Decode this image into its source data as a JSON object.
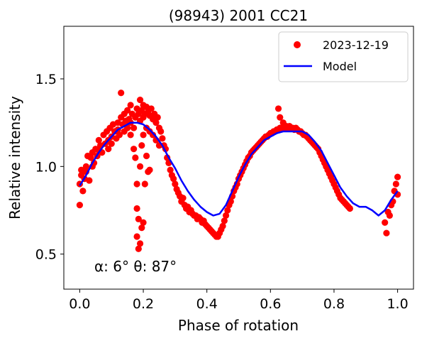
{
  "chart_data": {
    "type": "scatter",
    "title": "(98943) 2001 CC21",
    "xlabel": "Phase of rotation",
    "ylabel": "Relative intensity",
    "xlim": [
      -0.05,
      1.05
    ],
    "ylim": [
      0.3,
      1.8
    ],
    "xticks": [
      0.0,
      0.2,
      0.4,
      0.6,
      0.8,
      1.0
    ],
    "xtick_labels": [
      "0.0",
      "0.2",
      "0.4",
      "0.6",
      "0.8",
      "1.0"
    ],
    "yticks": [
      0.5,
      1.0,
      1.5
    ],
    "ytick_labels": [
      "0.5",
      "1.0",
      "1.5"
    ],
    "grid": false,
    "legend": "top-right",
    "annotation": "α: 6° θ: 87°",
    "series": [
      {
        "name": "2023-12-19",
        "kind": "scatter",
        "color": "#ff0000",
        "points": [
          [
            0.0,
            0.78
          ],
          [
            0.0,
            0.9
          ],
          [
            0.005,
            0.95
          ],
          [
            0.005,
            0.98
          ],
          [
            0.01,
            0.86
          ],
          [
            0.015,
            0.93
          ],
          [
            0.02,
            0.97
          ],
          [
            0.02,
            1.0
          ],
          [
            0.025,
            1.06
          ],
          [
            0.03,
            0.92
          ],
          [
            0.035,
            1.05
          ],
          [
            0.04,
            1.0
          ],
          [
            0.04,
            1.08
          ],
          [
            0.045,
            1.02
          ],
          [
            0.05,
            1.1
          ],
          [
            0.055,
            1.06
          ],
          [
            0.06,
            1.15
          ],
          [
            0.06,
            1.09
          ],
          [
            0.065,
            1.12
          ],
          [
            0.07,
            1.08
          ],
          [
            0.075,
            1.18
          ],
          [
            0.08,
            1.13
          ],
          [
            0.085,
            1.2
          ],
          [
            0.09,
            1.15
          ],
          [
            0.09,
            1.1
          ],
          [
            0.095,
            1.22
          ],
          [
            0.1,
            1.17
          ],
          [
            0.1,
            1.13
          ],
          [
            0.105,
            1.24
          ],
          [
            0.11,
            1.2
          ],
          [
            0.115,
            1.16
          ],
          [
            0.12,
            1.25
          ],
          [
            0.12,
            1.21
          ],
          [
            0.125,
            1.18
          ],
          [
            0.13,
            1.28
          ],
          [
            0.13,
            1.42
          ],
          [
            0.135,
            1.24
          ],
          [
            0.14,
            1.3
          ],
          [
            0.14,
            1.2
          ],
          [
            0.145,
            1.26
          ],
          [
            0.15,
            1.32
          ],
          [
            0.15,
            1.22
          ],
          [
            0.155,
            1.27
          ],
          [
            0.16,
            1.35
          ],
          [
            0.16,
            1.25
          ],
          [
            0.16,
            1.18
          ],
          [
            0.165,
            1.3
          ],
          [
            0.17,
            1.22
          ],
          [
            0.17,
            1.1
          ],
          [
            0.175,
            1.28
          ],
          [
            0.175,
            1.05
          ],
          [
            0.18,
            1.33
          ],
          [
            0.18,
            0.9
          ],
          [
            0.18,
            0.76
          ],
          [
            0.18,
            0.6
          ],
          [
            0.185,
            1.3
          ],
          [
            0.185,
            0.7
          ],
          [
            0.185,
            0.53
          ],
          [
            0.19,
            1.38
          ],
          [
            0.19,
            1.26
          ],
          [
            0.19,
            1.0
          ],
          [
            0.19,
            0.56
          ],
          [
            0.195,
            1.32
          ],
          [
            0.195,
            1.12
          ],
          [
            0.195,
            0.65
          ],
          [
            0.2,
            1.35
          ],
          [
            0.2,
            1.28
          ],
          [
            0.2,
            1.18
          ],
          [
            0.2,
            0.68
          ],
          [
            0.205,
            1.3
          ],
          [
            0.205,
            0.9
          ],
          [
            0.21,
            1.34
          ],
          [
            0.21,
            1.22
          ],
          [
            0.21,
            1.06
          ],
          [
            0.215,
            1.31
          ],
          [
            0.215,
            0.97
          ],
          [
            0.22,
            1.29
          ],
          [
            0.22,
            1.2
          ],
          [
            0.22,
            0.98
          ],
          [
            0.225,
            1.33
          ],
          [
            0.23,
            1.27
          ],
          [
            0.23,
            1.18
          ],
          [
            0.235,
            1.3
          ],
          [
            0.24,
            1.25
          ],
          [
            0.24,
            1.15
          ],
          [
            0.245,
            1.28
          ],
          [
            0.25,
            1.22
          ],
          [
            0.25,
            1.12
          ],
          [
            0.255,
            1.2
          ],
          [
            0.26,
            1.16
          ],
          [
            0.265,
            1.12
          ],
          [
            0.27,
            1.1
          ],
          [
            0.275,
            1.05
          ],
          [
            0.28,
            1.02
          ],
          [
            0.285,
            0.98
          ],
          [
            0.29,
            0.95
          ],
          [
            0.295,
            0.93
          ],
          [
            0.3,
            0.9
          ],
          [
            0.305,
            0.87
          ],
          [
            0.31,
            0.85
          ],
          [
            0.315,
            0.83
          ],
          [
            0.32,
            0.8
          ],
          [
            0.325,
            0.82
          ],
          [
            0.33,
            0.78
          ],
          [
            0.335,
            0.76
          ],
          [
            0.34,
            0.77
          ],
          [
            0.345,
            0.74
          ],
          [
            0.35,
            0.75
          ],
          [
            0.355,
            0.73
          ],
          [
            0.36,
            0.72
          ],
          [
            0.365,
            0.72
          ],
          [
            0.37,
            0.7
          ],
          [
            0.375,
            0.71
          ],
          [
            0.38,
            0.7
          ],
          [
            0.385,
            0.68
          ],
          [
            0.39,
            0.69
          ],
          [
            0.395,
            0.67
          ],
          [
            0.4,
            0.66
          ],
          [
            0.405,
            0.65
          ],
          [
            0.41,
            0.64
          ],
          [
            0.415,
            0.63
          ],
          [
            0.42,
            0.62
          ],
          [
            0.425,
            0.61
          ],
          [
            0.43,
            0.6
          ],
          [
            0.435,
            0.6
          ],
          [
            0.44,
            0.62
          ],
          [
            0.445,
            0.64
          ],
          [
            0.45,
            0.66
          ],
          [
            0.455,
            0.69
          ],
          [
            0.46,
            0.72
          ],
          [
            0.465,
            0.75
          ],
          [
            0.47,
            0.78
          ],
          [
            0.475,
            0.8
          ],
          [
            0.48,
            0.83
          ],
          [
            0.485,
            0.86
          ],
          [
            0.49,
            0.88
          ],
          [
            0.495,
            0.9
          ],
          [
            0.5,
            0.93
          ],
          [
            0.505,
            0.95
          ],
          [
            0.51,
            0.97
          ],
          [
            0.515,
            0.99
          ],
          [
            0.52,
            1.01
          ],
          [
            0.525,
            1.03
          ],
          [
            0.53,
            1.05
          ],
          [
            0.535,
            1.06
          ],
          [
            0.54,
            1.08
          ],
          [
            0.545,
            1.09
          ],
          [
            0.55,
            1.1
          ],
          [
            0.555,
            1.11
          ],
          [
            0.56,
            1.12
          ],
          [
            0.565,
            1.13
          ],
          [
            0.57,
            1.14
          ],
          [
            0.575,
            1.15
          ],
          [
            0.58,
            1.16
          ],
          [
            0.585,
            1.17
          ],
          [
            0.59,
            1.17
          ],
          [
            0.595,
            1.18
          ],
          [
            0.6,
            1.19
          ],
          [
            0.605,
            1.19
          ],
          [
            0.61,
            1.2
          ],
          [
            0.615,
            1.2
          ],
          [
            0.62,
            1.21
          ],
          [
            0.625,
            1.33
          ],
          [
            0.625,
            1.21
          ],
          [
            0.63,
            1.28
          ],
          [
            0.63,
            1.22
          ],
          [
            0.635,
            1.22
          ],
          [
            0.64,
            1.25
          ],
          [
            0.645,
            1.22
          ],
          [
            0.65,
            1.23
          ],
          [
            0.655,
            1.22
          ],
          [
            0.66,
            1.23
          ],
          [
            0.665,
            1.22
          ],
          [
            0.67,
            1.22
          ],
          [
            0.675,
            1.21
          ],
          [
            0.68,
            1.22
          ],
          [
            0.685,
            1.21
          ],
          [
            0.69,
            1.2
          ],
          [
            0.695,
            1.2
          ],
          [
            0.7,
            1.19
          ],
          [
            0.705,
            1.18
          ],
          [
            0.71,
            1.18
          ],
          [
            0.715,
            1.17
          ],
          [
            0.72,
            1.16
          ],
          [
            0.725,
            1.15
          ],
          [
            0.73,
            1.14
          ],
          [
            0.735,
            1.13
          ],
          [
            0.74,
            1.12
          ],
          [
            0.745,
            1.11
          ],
          [
            0.75,
            1.1
          ],
          [
            0.755,
            1.08
          ],
          [
            0.76,
            1.06
          ],
          [
            0.765,
            1.04
          ],
          [
            0.77,
            1.02
          ],
          [
            0.775,
            1.0
          ],
          [
            0.78,
            0.98
          ],
          [
            0.785,
            0.96
          ],
          [
            0.79,
            0.94
          ],
          [
            0.795,
            0.92
          ],
          [
            0.8,
            0.9
          ],
          [
            0.805,
            0.88
          ],
          [
            0.81,
            0.86
          ],
          [
            0.815,
            0.84
          ],
          [
            0.82,
            0.82
          ],
          [
            0.825,
            0.81
          ],
          [
            0.83,
            0.8
          ],
          [
            0.835,
            0.79
          ],
          [
            0.84,
            0.78
          ],
          [
            0.845,
            0.77
          ],
          [
            0.85,
            0.76
          ],
          [
            0.96,
            0.68
          ],
          [
            0.965,
            0.62
          ],
          [
            0.97,
            0.74
          ],
          [
            0.975,
            0.72
          ],
          [
            0.98,
            0.78
          ],
          [
            0.985,
            0.8
          ],
          [
            0.99,
            0.86
          ],
          [
            0.995,
            0.9
          ],
          [
            1.0,
            0.94
          ],
          [
            1.0,
            0.84
          ]
        ]
      },
      {
        "name": "Model",
        "kind": "line",
        "color": "#0000ff",
        "x": [
          0.0,
          0.02,
          0.04,
          0.06,
          0.08,
          0.1,
          0.12,
          0.14,
          0.16,
          0.18,
          0.2,
          0.22,
          0.24,
          0.26,
          0.28,
          0.3,
          0.32,
          0.34,
          0.36,
          0.38,
          0.4,
          0.42,
          0.44,
          0.46,
          0.48,
          0.5,
          0.52,
          0.54,
          0.56,
          0.58,
          0.6,
          0.62,
          0.64,
          0.66,
          0.68,
          0.7,
          0.72,
          0.74,
          0.76,
          0.78,
          0.8,
          0.82,
          0.84,
          0.86,
          0.88,
          0.9,
          0.92,
          0.94,
          0.96,
          0.98,
          1.0
        ],
        "y": [
          0.89,
          0.95,
          1.02,
          1.08,
          1.13,
          1.17,
          1.21,
          1.23,
          1.25,
          1.25,
          1.24,
          1.21,
          1.17,
          1.12,
          1.05,
          0.99,
          0.92,
          0.86,
          0.81,
          0.77,
          0.74,
          0.72,
          0.73,
          0.78,
          0.86,
          0.94,
          1.01,
          1.07,
          1.11,
          1.15,
          1.17,
          1.19,
          1.2,
          1.2,
          1.2,
          1.2,
          1.18,
          1.14,
          1.09,
          1.02,
          0.95,
          0.88,
          0.83,
          0.79,
          0.77,
          0.77,
          0.75,
          0.72,
          0.75,
          0.81,
          0.86
        ]
      }
    ]
  }
}
